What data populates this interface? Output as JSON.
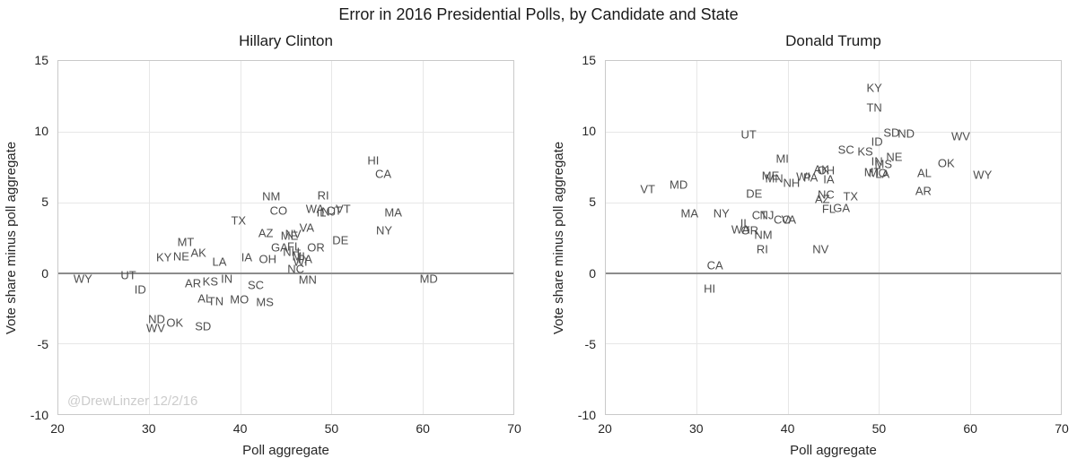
{
  "title": "Error in 2016 Presidential Polls, by Candidate and State",
  "watermark": "@DrewLinzer 12/2/16",
  "colors": {
    "background": "#ffffff",
    "title_text": "#1a1a1a",
    "tick_text": "#262626",
    "state_label_text": "#4d4d4d",
    "gridline": "#e7e7e7",
    "plot_border": "#c9c9c9",
    "zero_line": "#8c8c8c",
    "watermark_text": "#cccccc"
  },
  "chart_data": [
    {
      "type": "scatter",
      "marker": "state-abbreviation-text",
      "title": "Hillary Clinton",
      "xlabel": "Poll aggregate",
      "ylabel": "Vote share minus poll aggregate",
      "xlim": [
        20,
        70
      ],
      "ylim": [
        -10,
        15
      ],
      "xticks": [
        20,
        30,
        40,
        50,
        60,
        70
      ],
      "yticks": [
        -10,
        -5,
        0,
        5,
        10,
        15
      ],
      "grid": true,
      "zero_line_at": 0,
      "points": [
        {
          "state": "WY",
          "x": 22.7,
          "y": -0.4
        },
        {
          "state": "UT",
          "x": 27.7,
          "y": -0.15
        },
        {
          "state": "ID",
          "x": 29.0,
          "y": -1.2
        },
        {
          "state": "WV",
          "x": 30.7,
          "y": -3.9
        },
        {
          "state": "ND",
          "x": 30.8,
          "y": -3.3
        },
        {
          "state": "KY",
          "x": 31.6,
          "y": 1.1
        },
        {
          "state": "OK",
          "x": 32.8,
          "y": -3.5
        },
        {
          "state": "NE",
          "x": 33.5,
          "y": 1.15
        },
        {
          "state": "MT",
          "x": 34.0,
          "y": 2.2
        },
        {
          "state": "AR",
          "x": 34.8,
          "y": -0.75
        },
        {
          "state": "AK",
          "x": 35.4,
          "y": 1.4
        },
        {
          "state": "SD",
          "x": 35.9,
          "y": -3.8
        },
        {
          "state": "AL",
          "x": 36.1,
          "y": -1.8
        },
        {
          "state": "KS",
          "x": 36.7,
          "y": -0.6
        },
        {
          "state": "TN",
          "x": 37.3,
          "y": -2.0
        },
        {
          "state": "LA",
          "x": 37.7,
          "y": 0.8
        },
        {
          "state": "IN",
          "x": 38.5,
          "y": -0.4
        },
        {
          "state": "TX",
          "x": 39.8,
          "y": 3.7
        },
        {
          "state": "MO",
          "x": 39.9,
          "y": -1.85
        },
        {
          "state": "IA",
          "x": 40.7,
          "y": 1.1
        },
        {
          "state": "SC",
          "x": 41.7,
          "y": -0.85
        },
        {
          "state": "MS",
          "x": 42.7,
          "y": -2.1
        },
        {
          "state": "AZ",
          "x": 42.8,
          "y": 2.8
        },
        {
          "state": "OH",
          "x": 43.0,
          "y": 0.95
        },
        {
          "state": "NM",
          "x": 43.4,
          "y": 5.4
        },
        {
          "state": "CO",
          "x": 44.2,
          "y": 4.4
        },
        {
          "state": "GA",
          "x": 44.3,
          "y": 1.8
        },
        {
          "state": "ME",
          "x": 45.4,
          "y": 2.6
        },
        {
          "state": "NH",
          "x": 45.6,
          "y": 1.5
        },
        {
          "state": "NV",
          "x": 45.8,
          "y": 2.75
        },
        {
          "state": "FL",
          "x": 45.9,
          "y": 1.85
        },
        {
          "state": "NC",
          "x": 46.1,
          "y": 0.25
        },
        {
          "state": "MI",
          "x": 46.4,
          "y": 1.15
        },
        {
          "state": "WI",
          "x": 46.6,
          "y": 0.8
        },
        {
          "state": "PA",
          "x": 47.1,
          "y": 0.95
        },
        {
          "state": "VA",
          "x": 47.3,
          "y": 3.2
        },
        {
          "state": "MN",
          "x": 47.4,
          "y": -0.5
        },
        {
          "state": "WA",
          "x": 48.2,
          "y": 4.5
        },
        {
          "state": "OR",
          "x": 48.3,
          "y": 1.8
        },
        {
          "state": "IL",
          "x": 48.9,
          "y": 4.3
        },
        {
          "state": "RI",
          "x": 49.1,
          "y": 5.5
        },
        {
          "state": "NJ",
          "x": 49.7,
          "y": 4.35
        },
        {
          "state": "CT",
          "x": 50.3,
          "y": 4.4
        },
        {
          "state": "DE",
          "x": 51.0,
          "y": 2.3
        },
        {
          "state": "VT",
          "x": 51.3,
          "y": 4.5
        },
        {
          "state": "HI",
          "x": 54.6,
          "y": 7.95
        },
        {
          "state": "CA",
          "x": 55.7,
          "y": 7.0
        },
        {
          "state": "NY",
          "x": 55.8,
          "y": 3.0
        },
        {
          "state": "MA",
          "x": 56.8,
          "y": 4.3
        },
        {
          "state": "MD",
          "x": 60.7,
          "y": -0.45
        }
      ]
    },
    {
      "type": "scatter",
      "marker": "state-abbreviation-text",
      "title": "Donald Trump",
      "xlabel": "Poll aggregate",
      "ylabel": "Vote share minus poll aggregate",
      "xlim": [
        20,
        70
      ],
      "ylim": [
        -10,
        15
      ],
      "xticks": [
        20,
        30,
        40,
        50,
        60,
        70
      ],
      "yticks": [
        -10,
        -5,
        0,
        5,
        10,
        15
      ],
      "grid": true,
      "zero_line_at": 0,
      "points": [
        {
          "state": "VT",
          "x": 24.6,
          "y": 5.9
        },
        {
          "state": "MD",
          "x": 28.0,
          "y": 6.25
        },
        {
          "state": "MA",
          "x": 29.2,
          "y": 4.2
        },
        {
          "state": "HI",
          "x": 31.4,
          "y": -1.1
        },
        {
          "state": "CA",
          "x": 32.0,
          "y": 0.55
        },
        {
          "state": "NY",
          "x": 32.7,
          "y": 4.2
        },
        {
          "state": "WA",
          "x": 34.8,
          "y": 3.05
        },
        {
          "state": "IL",
          "x": 35.3,
          "y": 3.5
        },
        {
          "state": "UT",
          "x": 35.7,
          "y": 9.8
        },
        {
          "state": "OR",
          "x": 35.8,
          "y": 3.0
        },
        {
          "state": "DE",
          "x": 36.3,
          "y": 5.6
        },
        {
          "state": "CT",
          "x": 36.9,
          "y": 4.1
        },
        {
          "state": "RI",
          "x": 37.2,
          "y": 1.7
        },
        {
          "state": "NM",
          "x": 37.3,
          "y": 2.7
        },
        {
          "state": "NJ",
          "x": 37.7,
          "y": 4.1
        },
        {
          "state": "ME",
          "x": 38.1,
          "y": 6.9
        },
        {
          "state": "MN",
          "x": 38.5,
          "y": 6.7
        },
        {
          "state": "CO",
          "x": 39.4,
          "y": 3.8
        },
        {
          "state": "MI",
          "x": 39.4,
          "y": 8.1
        },
        {
          "state": "VA",
          "x": 40.1,
          "y": 3.75
        },
        {
          "state": "NH",
          "x": 40.4,
          "y": 6.4
        },
        {
          "state": "WI",
          "x": 41.7,
          "y": 6.8
        },
        {
          "state": "PA",
          "x": 42.5,
          "y": 6.75
        },
        {
          "state": "NV",
          "x": 43.6,
          "y": 1.7
        },
        {
          "state": "AK",
          "x": 43.7,
          "y": 7.3
        },
        {
          "state": "AZ",
          "x": 43.8,
          "y": 5.2
        },
        {
          "state": "NC",
          "x": 44.2,
          "y": 5.55
        },
        {
          "state": "OH",
          "x": 44.2,
          "y": 7.25
        },
        {
          "state": "FL",
          "x": 44.5,
          "y": 4.55
        },
        {
          "state": "IA",
          "x": 44.5,
          "y": 6.6
        },
        {
          "state": "GA",
          "x": 45.9,
          "y": 4.6
        },
        {
          "state": "SC",
          "x": 46.4,
          "y": 8.7
        },
        {
          "state": "TX",
          "x": 46.9,
          "y": 5.4
        },
        {
          "state": "KS",
          "x": 48.5,
          "y": 8.6
        },
        {
          "state": "MT",
          "x": 49.3,
          "y": 7.15
        },
        {
          "state": "KY",
          "x": 49.5,
          "y": 13.1
        },
        {
          "state": "TN",
          "x": 49.5,
          "y": 11.7
        },
        {
          "state": "IN",
          "x": 49.8,
          "y": 7.9
        },
        {
          "state": "ID",
          "x": 49.8,
          "y": 9.3
        },
        {
          "state": "MO",
          "x": 49.9,
          "y": 7.1
        },
        {
          "state": "LA",
          "x": 50.4,
          "y": 7.0
        },
        {
          "state": "MS",
          "x": 50.5,
          "y": 7.7
        },
        {
          "state": "SD",
          "x": 51.4,
          "y": 9.9
        },
        {
          "state": "NE",
          "x": 51.7,
          "y": 8.2
        },
        {
          "state": "ND",
          "x": 53.0,
          "y": 9.85
        },
        {
          "state": "AL",
          "x": 55.0,
          "y": 7.1
        },
        {
          "state": "AR",
          "x": 54.9,
          "y": 5.8
        },
        {
          "state": "OK",
          "x": 57.4,
          "y": 7.75
        },
        {
          "state": "WV",
          "x": 59.0,
          "y": 9.65
        },
        {
          "state": "WY",
          "x": 61.4,
          "y": 6.95
        }
      ]
    }
  ]
}
